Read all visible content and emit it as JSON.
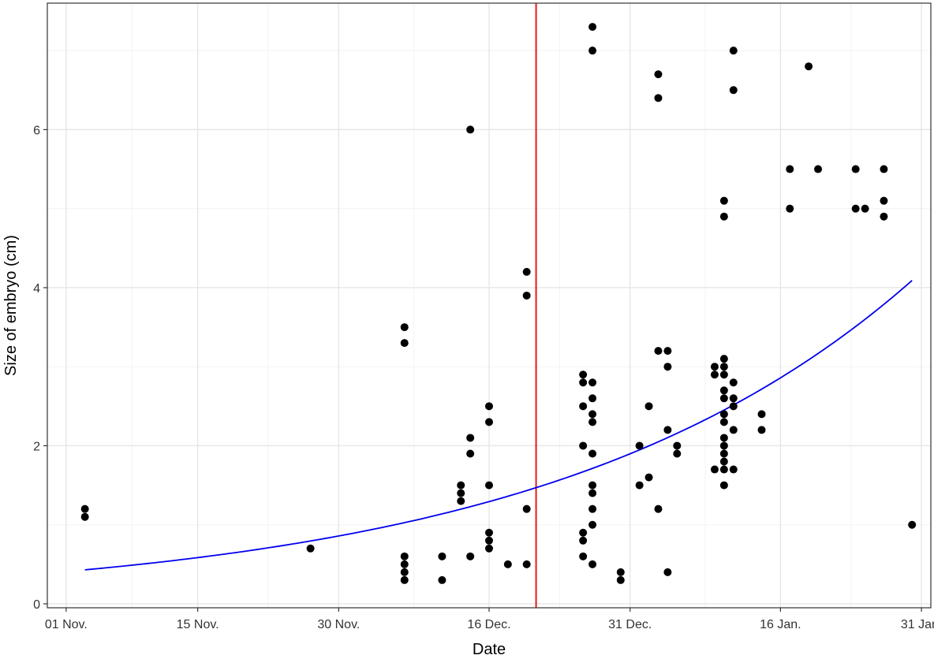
{
  "chart_data": {
    "type": "scatter",
    "title": "",
    "xlabel": "Date",
    "ylabel": "Size of embryo (cm)",
    "grid": true,
    "legend": "none",
    "x_axis": {
      "type": "date",
      "range": [
        "2020-10-30",
        "2021-02-01"
      ],
      "ticks": [
        {
          "date": "2020-11-01",
          "label": "01 Nov."
        },
        {
          "date": "2020-11-15",
          "label": "15 Nov."
        },
        {
          "date": "2020-11-30",
          "label": "30 Nov."
        },
        {
          "date": "2020-12-16",
          "label": "16 Dec."
        },
        {
          "date": "2020-12-31",
          "label": "31 Dec."
        },
        {
          "date": "2021-01-16",
          "label": "16 Jan."
        },
        {
          "date": "2021-01-31",
          "label": "31 Jan."
        }
      ]
    },
    "y_axis": {
      "range": [
        -0.05,
        7.6
      ],
      "ticks": [
        {
          "value": 0,
          "label": "0"
        },
        {
          "value": 2,
          "label": "2"
        },
        {
          "value": 4,
          "label": "4"
        },
        {
          "value": 6,
          "label": "6"
        }
      ]
    },
    "vline": {
      "date": "2020-12-21",
      "color": "#e31a1c"
    },
    "trend": {
      "color": "#0000ee",
      "x_start": "2020-11-03",
      "x_end": "2021-01-30",
      "y_start": 0.43,
      "growth_per_day": 0.0256
    },
    "point_color": "#000000",
    "points": [
      {
        "date": "2020-11-03",
        "values": [
          1.2,
          1.1
        ]
      },
      {
        "date": "2020-11-27",
        "values": [
          0.7
        ]
      },
      {
        "date": "2020-12-07",
        "values": [
          3.5,
          3.3,
          0.6,
          0.5,
          0.4,
          0.3
        ]
      },
      {
        "date": "2020-12-11",
        "values": [
          0.6,
          0.3
        ]
      },
      {
        "date": "2020-12-13",
        "values": [
          1.5,
          1.4,
          1.3
        ]
      },
      {
        "date": "2020-12-14",
        "values": [
          6.0,
          2.1,
          1.9,
          0.6
        ]
      },
      {
        "date": "2020-12-16",
        "values": [
          2.5,
          2.3,
          1.5,
          0.9,
          0.8,
          0.7
        ]
      },
      {
        "date": "2020-12-18",
        "values": [
          0.5
        ]
      },
      {
        "date": "2020-12-20",
        "values": [
          4.2,
          3.9,
          1.2,
          0.5
        ]
      },
      {
        "date": "2020-12-26",
        "values": [
          2.9,
          2.8,
          2.5,
          2.0,
          0.9,
          0.8,
          0.6
        ]
      },
      {
        "date": "2020-12-27",
        "values": [
          7.3,
          7.0,
          2.8,
          2.6,
          2.4,
          2.3,
          1.9,
          1.5,
          1.4,
          1.2,
          1.0,
          0.5
        ]
      },
      {
        "date": "2020-12-30",
        "values": [
          0.4,
          0.3
        ]
      },
      {
        "date": "2021-01-01",
        "values": [
          2.0,
          1.5
        ]
      },
      {
        "date": "2021-01-02",
        "values": [
          2.5,
          1.6
        ]
      },
      {
        "date": "2021-01-03",
        "values": [
          6.7,
          6.4,
          3.2,
          1.2
        ]
      },
      {
        "date": "2021-01-04",
        "values": [
          3.2,
          3.0,
          2.2,
          0.4
        ]
      },
      {
        "date": "2021-01-05",
        "values": [
          2.0,
          1.9
        ]
      },
      {
        "date": "2021-01-09",
        "values": [
          3.0,
          2.9,
          1.7
        ]
      },
      {
        "date": "2021-01-10",
        "values": [
          5.1,
          4.9,
          3.1,
          3.0,
          2.9,
          2.7,
          2.6,
          2.4,
          2.3,
          2.1,
          2.0,
          1.9,
          1.8,
          1.7,
          1.5
        ]
      },
      {
        "date": "2021-01-11",
        "values": [
          7.0,
          6.5,
          2.8,
          2.6,
          2.5,
          2.2,
          1.7
        ]
      },
      {
        "date": "2021-01-14",
        "values": [
          2.4,
          2.2
        ]
      },
      {
        "date": "2021-01-17",
        "values": [
          5.5,
          5.0
        ]
      },
      {
        "date": "2021-01-19",
        "values": [
          6.8
        ]
      },
      {
        "date": "2021-01-20",
        "values": [
          5.5
        ]
      },
      {
        "date": "2021-01-24",
        "values": [
          5.5,
          5.0
        ]
      },
      {
        "date": "2021-01-25",
        "values": [
          5.0
        ]
      },
      {
        "date": "2021-01-27",
        "values": [
          5.5,
          5.1,
          4.9
        ]
      },
      {
        "date": "2021-01-30",
        "values": [
          1.0
        ]
      }
    ]
  }
}
